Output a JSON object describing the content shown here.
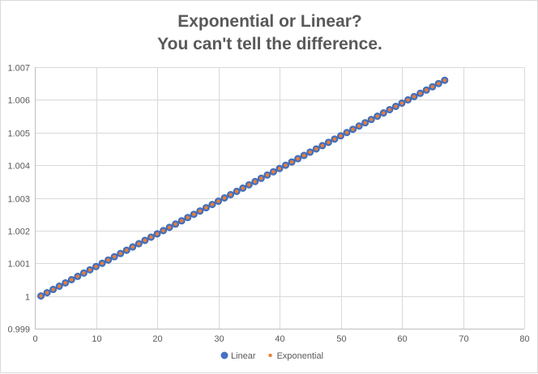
{
  "chart_data": {
    "type": "scatter",
    "title_lines": [
      "Exponential or Linear?",
      "You can't tell the difference."
    ],
    "xlabel": "",
    "ylabel": "",
    "xlim": [
      0,
      80
    ],
    "ylim": [
      0.999,
      1.007
    ],
    "x_ticks": [
      0,
      10,
      20,
      30,
      40,
      50,
      60,
      70,
      80
    ],
    "y_ticks": [
      0.999,
      1,
      1.001,
      1.002,
      1.003,
      1.004,
      1.005,
      1.006,
      1.007
    ],
    "x_tick_labels": [
      "0",
      "10",
      "20",
      "30",
      "40",
      "50",
      "60",
      "70",
      "80"
    ],
    "y_tick_labels": [
      "0.999",
      "1",
      "1.001",
      "1.002",
      "1.003",
      "1.004",
      "1.005",
      "1.006",
      "1.007"
    ],
    "grid": true,
    "legend_position": "bottom",
    "series": [
      {
        "name": "Linear",
        "color": "#4472c4",
        "marker": "circle-large",
        "x": [
          1,
          2,
          3,
          4,
          5,
          6,
          7,
          8,
          9,
          10,
          11,
          12,
          13,
          14,
          15,
          16,
          17,
          18,
          19,
          20,
          21,
          22,
          23,
          24,
          25,
          26,
          27,
          28,
          29,
          30,
          31,
          32,
          33,
          34,
          35,
          36,
          37,
          38,
          39,
          40,
          41,
          42,
          43,
          44,
          45,
          46,
          47,
          48,
          49,
          50,
          51,
          52,
          53,
          54,
          55,
          56,
          57,
          58,
          59,
          60,
          61,
          62,
          63,
          64,
          65,
          66,
          67
        ],
        "y": [
          1.0,
          1.0001,
          1.0002,
          1.0003,
          1.0004,
          1.0005,
          1.0006,
          1.0007,
          1.0008,
          1.0009,
          1.001,
          1.0011,
          1.0012,
          1.0013,
          1.0014,
          1.0015,
          1.0016,
          1.0017,
          1.0018,
          1.0019,
          1.002,
          1.0021,
          1.0022,
          1.0023,
          1.0024,
          1.0025,
          1.0026,
          1.0027,
          1.0028,
          1.0029,
          1.003,
          1.0031,
          1.0032,
          1.0033,
          1.0034,
          1.0035,
          1.0036,
          1.0037,
          1.0038,
          1.0039,
          1.004,
          1.0041,
          1.0042,
          1.0043,
          1.0044,
          1.0045,
          1.0046,
          1.0047,
          1.0048,
          1.0049,
          1.005,
          1.0051,
          1.0052,
          1.0053,
          1.0054,
          1.0055,
          1.0056,
          1.0057,
          1.0058,
          1.0059,
          1.006,
          1.0061,
          1.0062,
          1.0063,
          1.0064,
          1.0065,
          1.0066
        ]
      },
      {
        "name": "Exponential",
        "color": "#ed7d31",
        "marker": "circle-small",
        "x": [
          1,
          2,
          3,
          4,
          5,
          6,
          7,
          8,
          9,
          10,
          11,
          12,
          13,
          14,
          15,
          16,
          17,
          18,
          19,
          20,
          21,
          22,
          23,
          24,
          25,
          26,
          27,
          28,
          29,
          30,
          31,
          32,
          33,
          34,
          35,
          36,
          37,
          38,
          39,
          40,
          41,
          42,
          43,
          44,
          45,
          46,
          47,
          48,
          49,
          50,
          51,
          52,
          53,
          54,
          55,
          56,
          57,
          58,
          59,
          60,
          61,
          62,
          63,
          64,
          65,
          66,
          67
        ],
        "y": [
          1.0,
          1.0001,
          1.0002,
          1.0003,
          1.0004,
          1.0005,
          1.0006,
          1.0007,
          1.0008,
          1.0009,
          1.001,
          1.0011,
          1.0012,
          1.0013,
          1.0014,
          1.0015,
          1.0016,
          1.0017,
          1.0018,
          1.0019,
          1.002,
          1.0021,
          1.0022,
          1.0023,
          1.0024,
          1.0025,
          1.0026,
          1.0027,
          1.0028,
          1.0029,
          1.003,
          1.0031,
          1.0032,
          1.0033,
          1.0034,
          1.0035,
          1.0036,
          1.0037,
          1.0038,
          1.0039,
          1.004,
          1.0041,
          1.0042,
          1.0043,
          1.0044,
          1.0045,
          1.0046,
          1.0047,
          1.0048,
          1.0049,
          1.005,
          1.0051,
          1.0052,
          1.0053,
          1.0054,
          1.0055,
          1.0056,
          1.0057,
          1.0058,
          1.0059,
          1.006,
          1.0061,
          1.0062,
          1.0063,
          1.0064,
          1.0065,
          1.0066
        ]
      }
    ]
  }
}
